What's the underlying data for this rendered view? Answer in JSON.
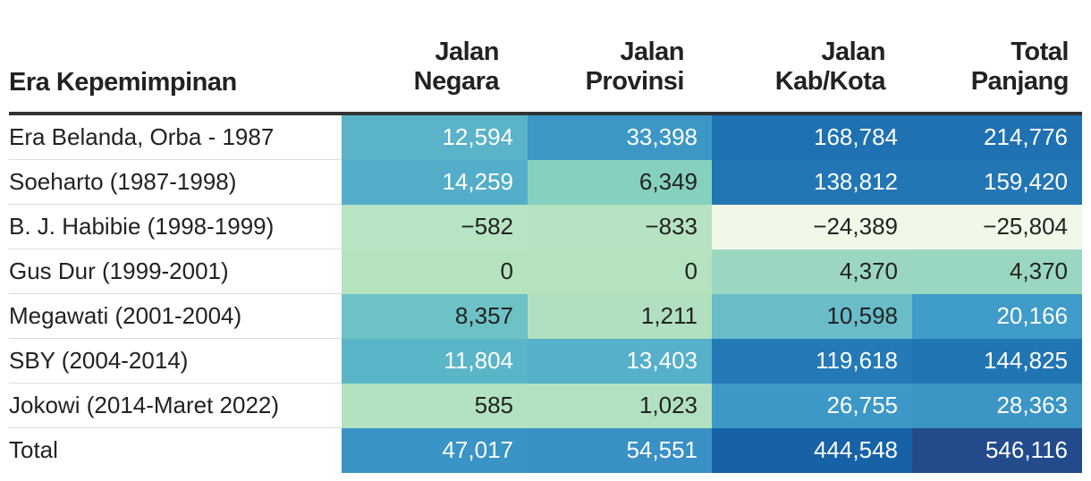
{
  "table": {
    "headers": {
      "era": "Era Kepemimpinan",
      "negara": [
        "Jalan",
        "Negara"
      ],
      "provinsi": [
        "Jalan",
        "Provinsi"
      ],
      "kabkota": [
        "Jalan",
        "Kab/Kota"
      ],
      "total": [
        "Total",
        "Panjang"
      ]
    }
  },
  "chart_data": {
    "type": "table",
    "columns": [
      "Era Kepemimpinan",
      "Jalan Negara",
      "Jalan Provinsi",
      "Jalan Kab/Kota",
      "Total Panjang"
    ],
    "rows": [
      {
        "label": "Era Belanda, Orba - 1987",
        "values": [
          "12,594",
          "33,398",
          "168,784",
          "214,776"
        ],
        "colors": [
          "#5ab3c8",
          "#3c97c6",
          "#1f71b1",
          "#1f71b1"
        ],
        "text": [
          "#ffffff",
          "#ffffff",
          "#ffffff",
          "#ffffff"
        ]
      },
      {
        "label": "Soeharto (1987-1998)",
        "values": [
          "14,259",
          "6,349",
          "138,812",
          "159,420"
        ],
        "colors": [
          "#55aec9",
          "#86d0c0",
          "#2276b4",
          "#2376b4"
        ],
        "text": [
          "#ffffff",
          "#222222",
          "#ffffff",
          "#ffffff"
        ]
      },
      {
        "label": "B. J. Habibie (1998-1999)",
        "values": [
          "−582",
          "−833",
          "−24,389",
          "−25,804"
        ],
        "colors": [
          "#b7e4c2",
          "#b6e3c2",
          "#f0f9e8",
          "#f0f9e8"
        ],
        "text": [
          "#222222",
          "#222222",
          "#222222",
          "#222222"
        ]
      },
      {
        "label": "Gus Dur (1999-2001)",
        "values": [
          "0",
          "0",
          "4,370",
          "4,370"
        ],
        "colors": [
          "#b6e3bf",
          "#b6e3bf",
          "#9bd7c0",
          "#9ad7c0"
        ],
        "text": [
          "#222222",
          "#222222",
          "#222222",
          "#222222"
        ]
      },
      {
        "label": "Megawati (2001-2004)",
        "values": [
          "8,357",
          "1,211",
          "10,598",
          "20,166"
        ],
        "colors": [
          "#6dc2c6",
          "#b0e0c0",
          "#68bdc8",
          "#3f9bc8"
        ],
        "text": [
          "#222222",
          "#222222",
          "#222222",
          "#ffffff"
        ]
      },
      {
        "label": "SBY (2004-2014)",
        "values": [
          "11,804",
          "13,403",
          "119,618",
          "144,825"
        ],
        "colors": [
          "#5bb5c8",
          "#56b0c9",
          "#2479b6",
          "#2175b3"
        ],
        "text": [
          "#ffffff",
          "#ffffff",
          "#ffffff",
          "#ffffff"
        ]
      },
      {
        "label": "Jokowi (2014-Maret 2022)",
        "values": [
          "585",
          "1,023",
          "26,755",
          "28,363"
        ],
        "colors": [
          "#b3e2c0",
          "#b1e1c0",
          "#3d98c7",
          "#3b96c6"
        ],
        "text": [
          "#222222",
          "#222222",
          "#ffffff",
          "#ffffff"
        ]
      },
      {
        "label": "Total",
        "values": [
          "47,017",
          "54,551",
          "444,548",
          "546,116"
        ],
        "colors": [
          "#3a94c5",
          "#3990c4",
          "#1762a7",
          "#234b8c"
        ],
        "text": [
          "#ffffff",
          "#ffffff",
          "#ffffff",
          "#ffffff"
        ]
      }
    ]
  }
}
